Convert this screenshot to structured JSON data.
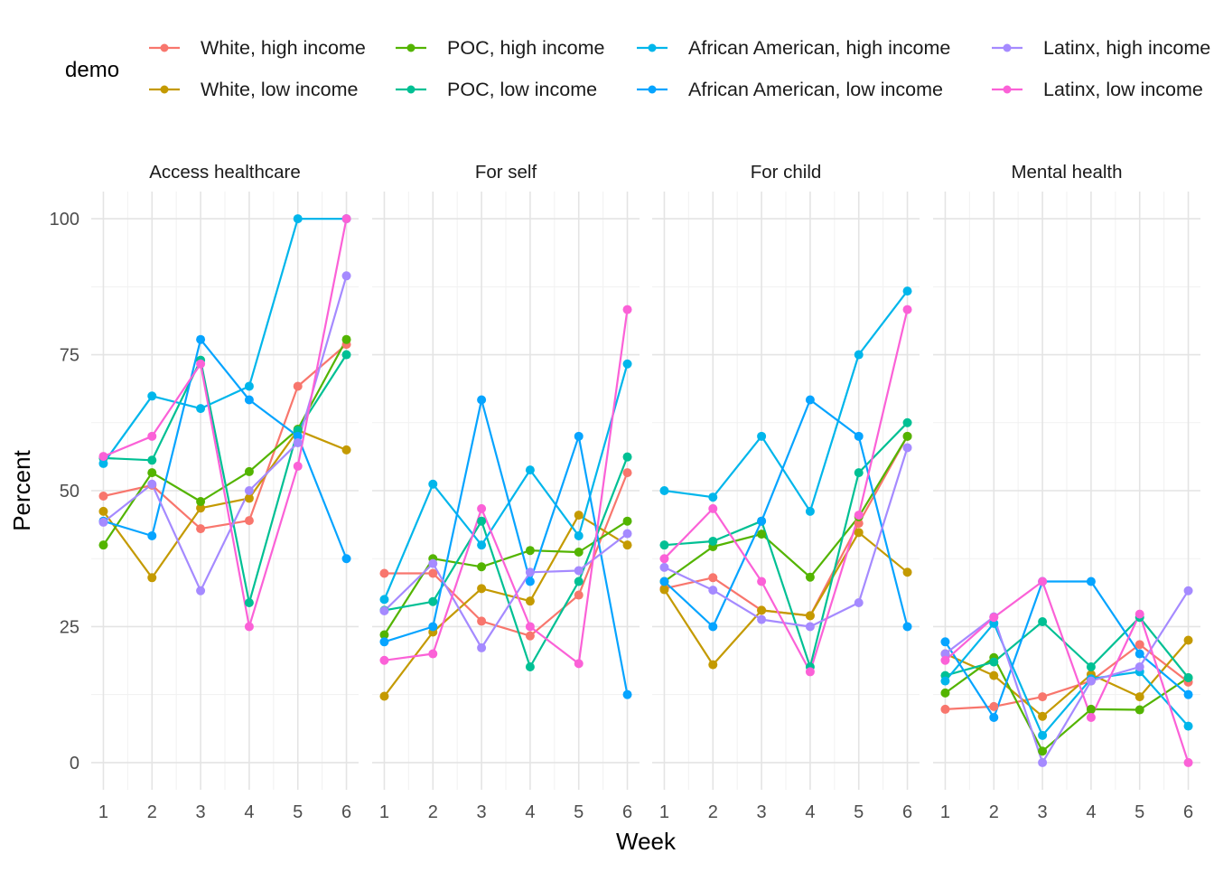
{
  "chart_data": {
    "type": "line",
    "facet_titles": [
      "Access healthcare",
      "For self",
      "For child",
      "Mental health"
    ],
    "xlabel": "Week",
    "ylabel": "Percent",
    "x": [
      1,
      2,
      3,
      4,
      5,
      6
    ],
    "x_ticks": [
      "1",
      "2",
      "3",
      "4",
      "5",
      "6"
    ],
    "y_ticks": [
      "0",
      "25",
      "50",
      "75",
      "100"
    ],
    "ylim": [
      -5,
      105
    ],
    "xlim": [
      0.75,
      6.25
    ],
    "grid": true,
    "legend_title": "demo",
    "legend_position": "top",
    "series": [
      {
        "name": "White, high income",
        "color": "#F8766D",
        "panels": [
          [
            49,
            51,
            43,
            44.5,
            69.2,
            76.9
          ],
          [
            34.8,
            34.8,
            26,
            23.3,
            30.8,
            53.3
          ],
          [
            32,
            34,
            28,
            27,
            44,
            60
          ],
          [
            9.8,
            10.3,
            12.1,
            15,
            21.7,
            14.8
          ]
        ]
      },
      {
        "name": "White, low income",
        "color": "#C49A00",
        "panels": [
          [
            46.2,
            34,
            46.8,
            48.6,
            61.1,
            57.5
          ],
          [
            12.2,
            24,
            32,
            29.7,
            45.5,
            40
          ],
          [
            31.8,
            18,
            28,
            27,
            42.3,
            35
          ],
          [
            20,
            16,
            8.5,
            16.2,
            12.1,
            22.5
          ]
        ]
      },
      {
        "name": "POC, high income",
        "color": "#53B400",
        "panels": [
          [
            40,
            53.3,
            48,
            53.5,
            61.3,
            77.8
          ],
          [
            23.5,
            37.5,
            36,
            39,
            38.7,
            44.4
          ],
          [
            33.3,
            39.7,
            42,
            34.1,
            45.2,
            60
          ],
          [
            12.8,
            19.3,
            2.1,
            9.8,
            9.7,
            15.6
          ]
        ]
      },
      {
        "name": "POC, low income",
        "color": "#00C094",
        "panels": [
          [
            56,
            55.6,
            74,
            29.4,
            61.1,
            75
          ],
          [
            28,
            29.6,
            44.4,
            17.6,
            33.3,
            56.2
          ],
          [
            40,
            40.7,
            44.4,
            17.6,
            53.3,
            62.5
          ],
          [
            16,
            18.5,
            25.9,
            17.6,
            26.7,
            15.6
          ]
        ]
      },
      {
        "name": "African American, high income",
        "color": "#00B6EB",
        "panels": [
          [
            55,
            67.4,
            65.1,
            69.2,
            100,
            100
          ],
          [
            30,
            51.2,
            40,
            53.8,
            41.7,
            73.3
          ],
          [
            50,
            48.8,
            60,
            46.2,
            75,
            86.7
          ],
          [
            15,
            25.6,
            5,
            15.4,
            16.7,
            6.7
          ]
        ]
      },
      {
        "name": "African American, low income",
        "color": "#06A4FF",
        "panels": [
          [
            44.4,
            41.7,
            77.8,
            66.7,
            60,
            37.5
          ],
          [
            22.2,
            25,
            66.7,
            33.3,
            60,
            12.5
          ],
          [
            33.3,
            25,
            44.4,
            66.7,
            60,
            25
          ],
          [
            22.2,
            8.3,
            33.3,
            33.3,
            20,
            12.5
          ]
        ]
      },
      {
        "name": "Latinx, high income",
        "color": "#A58AFF",
        "panels": [
          [
            44.2,
            51.2,
            31.6,
            50,
            58.8,
            89.5
          ],
          [
            27.9,
            36.6,
            21.1,
            35,
            35.3,
            42.1
          ],
          [
            35.9,
            31.7,
            26.3,
            25,
            29.4,
            57.9
          ],
          [
            20,
            26.8,
            0,
            15,
            17.6,
            31.6
          ]
        ]
      },
      {
        "name": "Latinx, low income",
        "color": "#FB61D7",
        "panels": [
          [
            56.3,
            60,
            73.3,
            25,
            54.5,
            100
          ],
          [
            18.8,
            20,
            46.7,
            25,
            18.2,
            83.3
          ],
          [
            37.5,
            46.7,
            33.3,
            16.7,
            45.5,
            83.3
          ],
          [
            18.8,
            26.7,
            33.3,
            8.3,
            27.3,
            0
          ]
        ]
      }
    ]
  }
}
